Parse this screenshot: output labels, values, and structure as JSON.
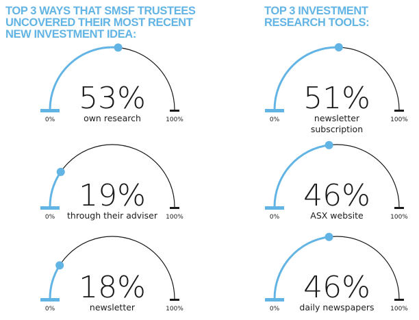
{
  "left_panel": {
    "title_lines": [
      "TOP 3 WAYS THAT SMSF TRUSTEES",
      "UNCOVERED THEIR MOST RECENT",
      "NEW INVESTMENT IDEA:"
    ]
  },
  "right_panel": {
    "title_lines": [
      "TOP 3 INVESTMENT",
      "RESEARCH TOOLS:"
    ]
  },
  "colors": {
    "accent": "#62b4e4",
    "track": "#1a1a1a",
    "text": "#1a1a1a"
  },
  "chart_data": [
    {
      "type": "gauge",
      "title": "TOP 3 WAYS THAT SMSF TRUSTEES UNCOVERED THEIR MOST RECENT NEW INVESTMENT IDEA:",
      "range": [
        0,
        100
      ],
      "min_label": "0%",
      "max_label": "100%",
      "items": [
        {
          "value": 53,
          "value_label": "53%",
          "label_lines": [
            "own research"
          ]
        },
        {
          "value": 19,
          "value_label": "19%",
          "label_lines": [
            "through their adviser"
          ]
        },
        {
          "value": 18,
          "value_label": "18%",
          "label_lines": [
            "newsletter"
          ]
        }
      ]
    },
    {
      "type": "gauge",
      "title": "TOP 3 INVESTMENT RESEARCH TOOLS:",
      "range": [
        0,
        100
      ],
      "min_label": "0%",
      "max_label": "100%",
      "items": [
        {
          "value": 51,
          "value_label": "51%",
          "label_lines": [
            "newsletter",
            "subscription"
          ]
        },
        {
          "value": 46,
          "value_label": "46%",
          "label_lines": [
            "ASX website"
          ]
        },
        {
          "value": 46,
          "value_label": "46%",
          "label_lines": [
            "daily newspapers"
          ]
        }
      ]
    }
  ]
}
